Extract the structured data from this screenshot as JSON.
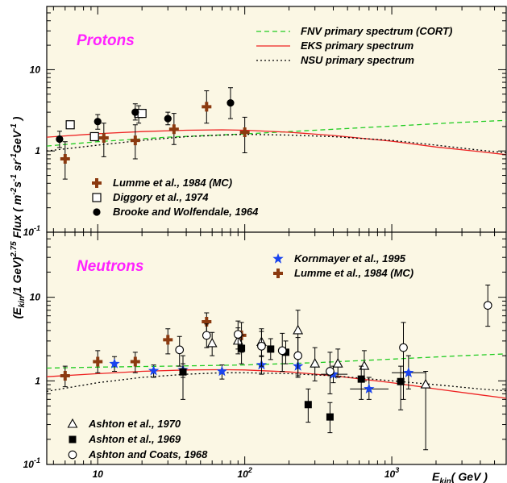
{
  "chart_data": [
    {
      "type": "scatter",
      "panel_title": "Protons",
      "x_scale": "log",
      "y_scale": "log",
      "xlim": [
        4.5,
        6000
      ],
      "ylim": [
        0.1,
        60
      ],
      "x_ticks": [
        "10",
        "10^2",
        "10^3"
      ],
      "y_ticks": [
        "10^-1",
        "1",
        "10"
      ],
      "curves": [
        {
          "name": "FNV primary spectrum (CORT)",
          "color": "#22cc22",
          "style": "dashed",
          "x": [
            4.5,
            10,
            30,
            100,
            300,
            1000,
            3000,
            6000
          ],
          "y": [
            1.15,
            1.3,
            1.48,
            1.62,
            1.8,
            2.02,
            2.25,
            2.38
          ]
        },
        {
          "name": "EKS primary spectrum",
          "color": "#ee2222",
          "style": "solid",
          "x": [
            4.5,
            10,
            20,
            40,
            70,
            100,
            200,
            400,
            1000,
            2000,
            4000,
            6000
          ],
          "y": [
            1.48,
            1.63,
            1.73,
            1.8,
            1.82,
            1.8,
            1.7,
            1.55,
            1.32,
            1.12,
            0.98,
            0.9
          ]
        },
        {
          "name": "NSU primary spectrum",
          "color": "#000000",
          "style": "dotted",
          "x": [
            4.5,
            10,
            20,
            40,
            70,
            100,
            200,
            400,
            1000,
            2000,
            4000,
            6000
          ],
          "y": [
            1.0,
            1.18,
            1.35,
            1.5,
            1.57,
            1.6,
            1.57,
            1.5,
            1.35,
            1.18,
            1.02,
            0.95
          ]
        }
      ],
      "series": [
        {
          "name": "Lumme et al., 1984 (MC)",
          "marker": "cross",
          "color": "#8b3a10",
          "points": [
            [
              6,
              0.8,
              0.45,
              1.3
            ],
            [
              11,
              1.45,
              0.85,
              2.2
            ],
            [
              18,
              1.35,
              0.8,
              2.1
            ],
            [
              33,
              1.85,
              1.2,
              2.9
            ],
            [
              55,
              3.5,
              2.2,
              5.5
            ],
            [
              100,
              1.7,
              0.95,
              2.6
            ]
          ]
        },
        {
          "name": "Diggory et al., 1974",
          "marker": "open-square",
          "color": "#000000",
          "points": [
            [
              6.5,
              2.1,
              2.1,
              2.1
            ],
            [
              9.5,
              1.5,
              1.5,
              1.5
            ],
            [
              19,
              2.9,
              2.2,
              3.6
            ],
            [
              20,
              2.9,
              2.9,
              2.9
            ]
          ]
        },
        {
          "name": "Brooke and Wolfendale, 1964",
          "marker": "filled-circle",
          "color": "#000000",
          "points": [
            [
              5.5,
              1.4,
              1.1,
              1.75
            ],
            [
              10,
              2.3,
              1.85,
              2.8
            ],
            [
              18,
              3.0,
              2.4,
              3.8
            ],
            [
              30,
              2.5,
              2.1,
              3.0
            ],
            [
              80,
              3.9,
              2.5,
              6.0
            ]
          ]
        }
      ]
    },
    {
      "type": "scatter",
      "panel_title": "Neutrons",
      "x_scale": "log",
      "y_scale": "log",
      "xlim": [
        4.5,
        6000
      ],
      "ylim": [
        0.1,
        60
      ],
      "x_ticks": [
        "10",
        "10^2",
        "10^3"
      ],
      "y_ticks": [
        "10^-1",
        "1",
        "10"
      ],
      "xlabel": "E_kin ( GeV )",
      "ylabel": "(E_kin /1 GeV)^2.75 Flux  ( m^-2 s^-1 sr^-1 GeV^-1 )",
      "curves": [
        {
          "name": "FNV primary spectrum (CORT)",
          "color": "#22cc22",
          "style": "dashed",
          "x": [
            4.5,
            10,
            30,
            100,
            300,
            1000,
            3000,
            6000
          ],
          "y": [
            1.42,
            1.46,
            1.5,
            1.55,
            1.65,
            1.82,
            2.0,
            2.1
          ]
        },
        {
          "name": "EKS primary spectrum",
          "color": "#ee2222",
          "style": "solid",
          "x": [
            4.5,
            10,
            20,
            40,
            70,
            100,
            200,
            400,
            1000,
            2000,
            4000,
            6000
          ],
          "y": [
            1.12,
            1.22,
            1.3,
            1.35,
            1.36,
            1.35,
            1.28,
            1.15,
            0.95,
            0.8,
            0.68,
            0.62
          ]
        },
        {
          "name": "NSU primary spectrum",
          "color": "#000000",
          "style": "dotted",
          "x": [
            4.5,
            10,
            20,
            40,
            70,
            100,
            200,
            400,
            1000,
            2000,
            4000,
            6000
          ],
          "y": [
            0.75,
            0.95,
            1.1,
            1.2,
            1.25,
            1.25,
            1.22,
            1.15,
            1.0,
            0.9,
            0.8,
            0.76
          ]
        }
      ],
      "series": [
        {
          "name": "Kornmayer et al., 1995",
          "marker": "star",
          "color": "#1a44ee",
          "points": [
            [
              13,
              1.6,
              1.3,
              1.95,
              0,
              0
            ],
            [
              24,
              1.32,
              1.1,
              1.55,
              0,
              0
            ],
            [
              38,
              1.35,
              1.1,
              1.6,
              0,
              0
            ],
            [
              70,
              1.3,
              1.05,
              1.55,
              0,
              0
            ],
            [
              130,
              1.55,
              1.2,
              1.95,
              0,
              0
            ],
            [
              230,
              1.5,
              1.15,
              1.95,
              0,
              0
            ],
            [
              400,
              1.2,
              0.95,
              1.5,
              330,
              500
            ],
            [
              700,
              0.8,
              0.6,
              1.1,
              520,
              950
            ],
            [
              1300,
              1.25,
              0.8,
              2.0,
              1000,
              1700
            ]
          ]
        },
        {
          "name": "Lumme et al., 1984 (MC)",
          "marker": "cross",
          "color": "#8b3a10",
          "points": [
            [
              6,
              1.15,
              0.85,
              1.5,
              0,
              0
            ],
            [
              10,
              1.7,
              1.25,
              2.3,
              0,
              0
            ],
            [
              18,
              1.7,
              1.25,
              2.2,
              0,
              0
            ],
            [
              30,
              3.1,
              2.1,
              4.2,
              0,
              0
            ],
            [
              55,
              5.1,
              3.8,
              6.5,
              0,
              0
            ],
            [
              95,
              3.5,
              2.2,
              5.0,
              0,
              0
            ]
          ]
        },
        {
          "name": "Ashton et al., 1970",
          "marker": "open-triangle",
          "color": "#000000",
          "points": [
            [
              60,
              2.8,
              2.0,
              3.8,
              0,
              0
            ],
            [
              90,
              3.0,
              2.1,
              4.3,
              0,
              0
            ],
            [
              130,
              2.9,
              2.0,
              4.2,
              0,
              0
            ],
            [
              230,
              4.0,
              2.2,
              7.0,
              0,
              0
            ],
            [
              300,
              1.6,
              1.0,
              2.5,
              0,
              0
            ],
            [
              430,
              1.6,
              1.1,
              2.4,
              0,
              0
            ],
            [
              650,
              1.5,
              1.0,
              2.3,
              0,
              0
            ],
            [
              1700,
              0.9,
              0.15,
              1.3,
              0,
              0
            ]
          ]
        },
        {
          "name": "Ashton et al., 1969",
          "marker": "filled-square",
          "color": "#000000",
          "points": [
            [
              38,
              1.28,
              0.6,
              2.0,
              0,
              0
            ],
            [
              95,
              2.45,
              1.6,
              3.5,
              0,
              0
            ],
            [
              150,
              2.4,
              1.8,
              3.2,
              0,
              0
            ],
            [
              190,
              2.2,
              1.6,
              3.0,
              0,
              0
            ],
            [
              270,
              0.52,
              0.32,
              0.8,
              0,
              0
            ],
            [
              380,
              0.37,
              0.24,
              0.55,
              0,
              0
            ],
            [
              620,
              1.05,
              0.6,
              1.5,
              0,
              0
            ],
            [
              1150,
              0.98,
              0.45,
              1.5,
              0,
              0
            ]
          ]
        },
        {
          "name": "Ashton and Coats, 1968",
          "marker": "open-circle",
          "color": "#000000",
          "points": [
            [
              36,
              2.35,
              1.5,
              3.4,
              0,
              0
            ],
            [
              55,
              3.5,
              2.5,
              4.8,
              0,
              0
            ],
            [
              90,
              3.6,
              2.4,
              5.2,
              0,
              0
            ],
            [
              130,
              2.6,
              1.5,
              3.9,
              0,
              0
            ],
            [
              180,
              2.3,
              1.3,
              3.7,
              0,
              0
            ],
            [
              230,
              2.0,
              1.1,
              3.3,
              0,
              0
            ],
            [
              380,
              1.3,
              0.7,
              2.2,
              0,
              0
            ],
            [
              1200,
              2.5,
              0.6,
              5.0,
              0,
              0
            ],
            [
              4500,
              8.0,
              4.5,
              14.0,
              0,
              0
            ]
          ]
        }
      ]
    }
  ]
}
